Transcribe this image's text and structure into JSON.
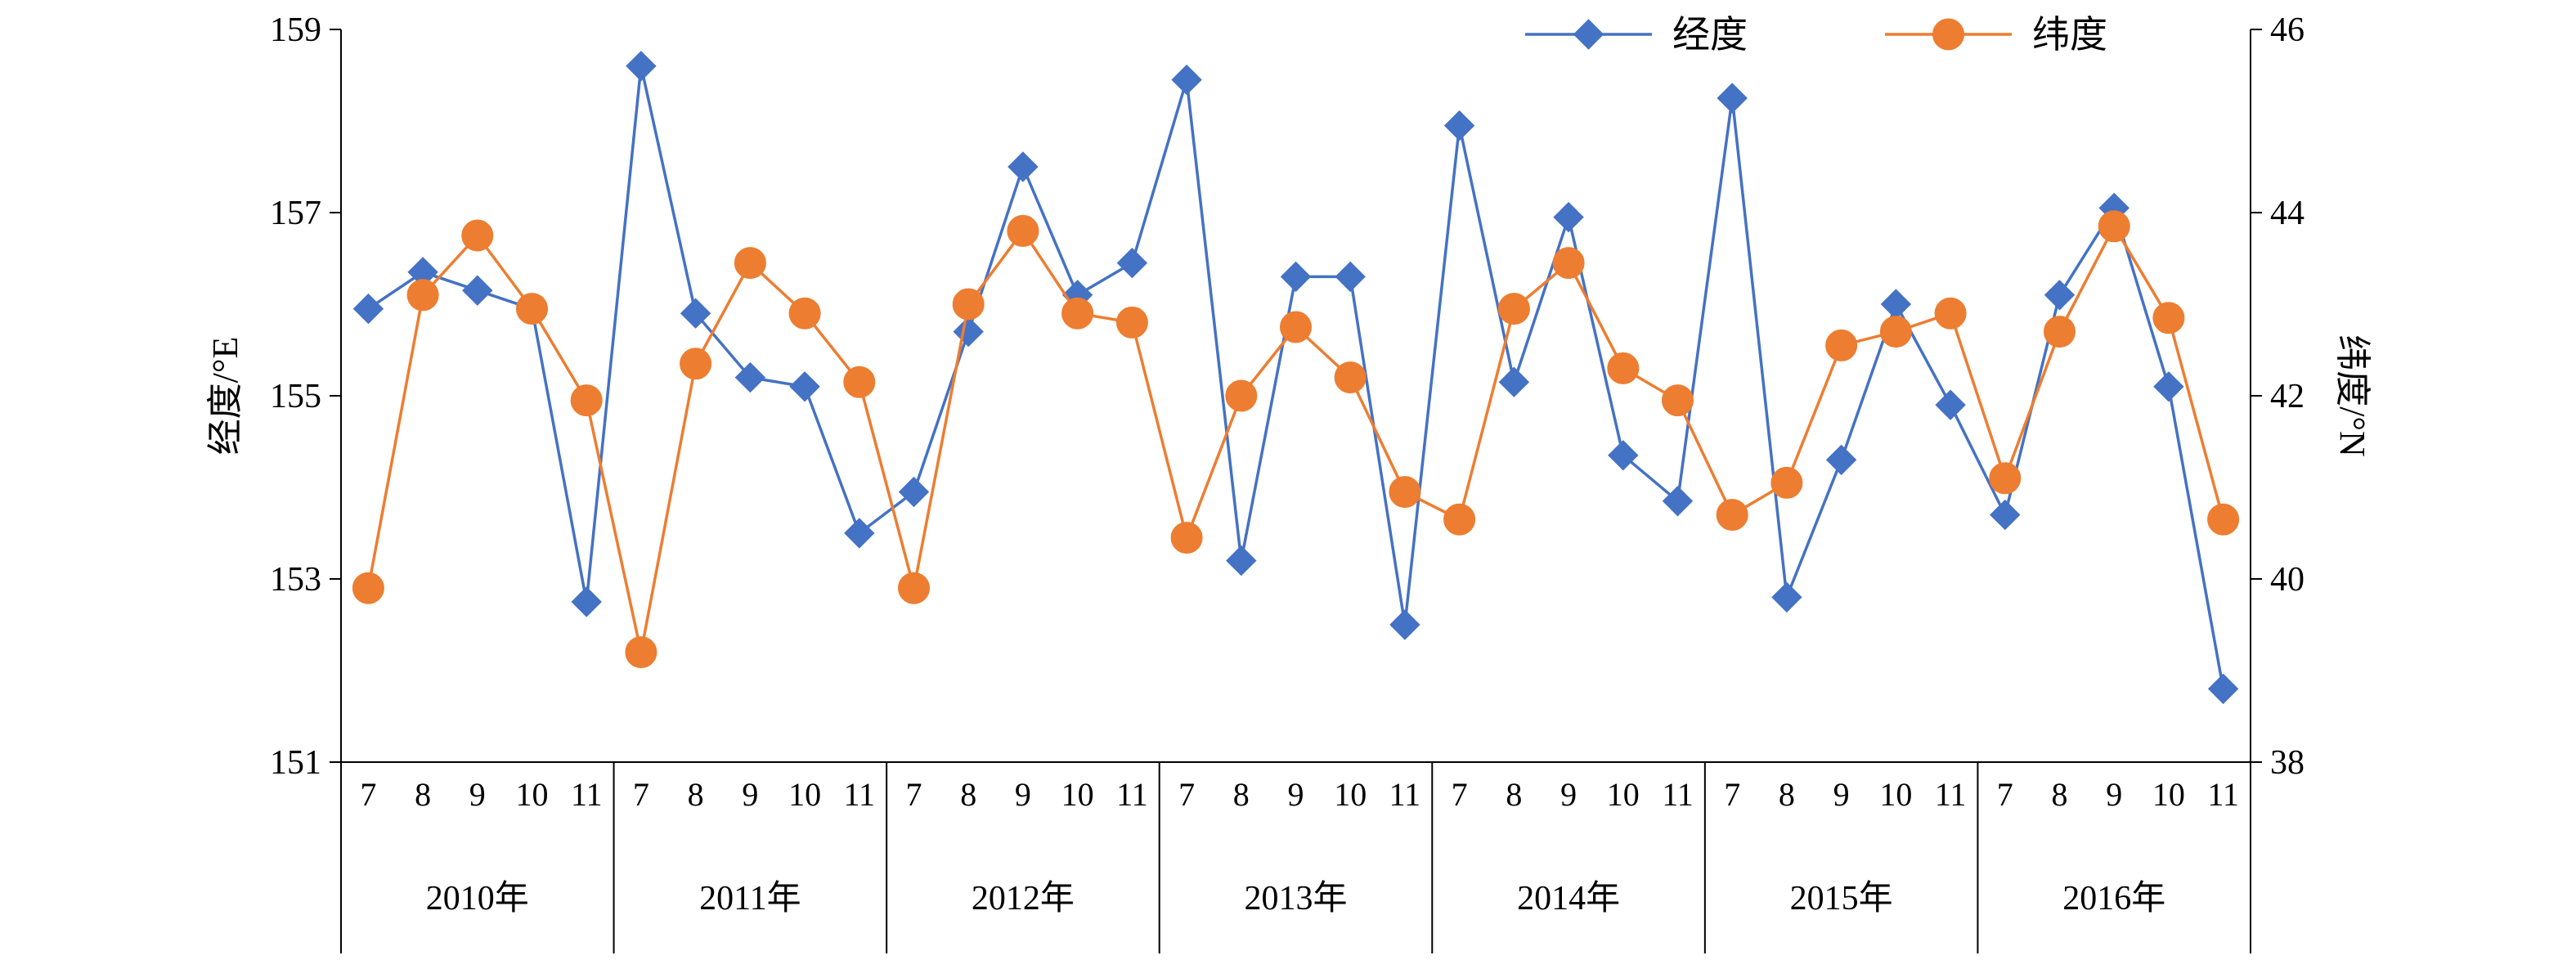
{
  "chart_data": {
    "type": "line",
    "title": "",
    "left_axis": {
      "label": "经度/°E",
      "range": [
        151,
        159
      ],
      "ticks": [
        "151",
        "153",
        "155",
        "157",
        "159"
      ]
    },
    "right_axis": {
      "label": "纬度/°N",
      "range": [
        38,
        46
      ],
      "ticks": [
        "38",
        "40",
        "42",
        "44",
        "46"
      ]
    },
    "months": [
      "7",
      "8",
      "9",
      "10",
      "11"
    ],
    "years": [
      "2010年",
      "2011年",
      "2012年",
      "2013年",
      "2014年",
      "2015年",
      "2016年"
    ],
    "legend_position": "top-right",
    "series": [
      {
        "name": "经度",
        "axis": "left",
        "color": "#4472C4",
        "marker": "diamond",
        "values": [
          155.95,
          156.35,
          156.15,
          155.95,
          152.75,
          158.6,
          155.9,
          155.2,
          155.1,
          153.5,
          153.95,
          155.7,
          157.5,
          156.1,
          156.45,
          158.45,
          153.2,
          156.3,
          156.3,
          152.5,
          157.95,
          155.15,
          156.95,
          154.35,
          153.85,
          158.25,
          152.8,
          154.3,
          156.0,
          154.9,
          153.7,
          156.1,
          157.05,
          155.1,
          151.8
        ]
      },
      {
        "name": "纬度",
        "axis": "right",
        "color": "#ED7D31",
        "marker": "circle",
        "values": [
          39.9,
          43.1,
          43.75,
          42.95,
          41.95,
          39.2,
          42.35,
          43.45,
          42.9,
          42.15,
          39.9,
          43.0,
          43.8,
          42.9,
          42.8,
          40.45,
          42.0,
          42.75,
          42.2,
          40.95,
          40.65,
          42.95,
          43.45,
          42.3,
          41.95,
          40.7,
          41.05,
          42.55,
          42.7,
          42.9,
          41.1,
          42.7,
          43.85,
          42.85,
          40.65
        ]
      }
    ]
  }
}
